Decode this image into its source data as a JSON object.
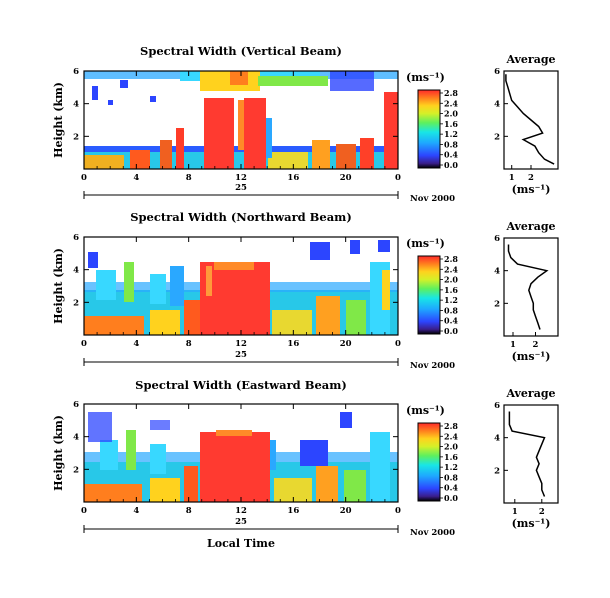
{
  "figure": {
    "x_label": "Local Time",
    "date_day": "25",
    "date_text": "Nov 2000",
    "y_label": "Height (km)",
    "unit_label": "(ms⁻¹)",
    "average_title": "Average",
    "average_xlabel": "(ms⁻¹)"
  },
  "chart_data": [
    {
      "type": "heatmap",
      "title": "Spectral Width (Vertical Beam)",
      "xlim": [
        0,
        24
      ],
      "xticks": [
        "0",
        "4",
        "8",
        "12",
        "16",
        "20",
        "0"
      ],
      "ylim": [
        0,
        6
      ],
      "yticks": [
        "2",
        "4",
        "6"
      ],
      "colorbar": {
        "range": [
          0,
          2.8
        ],
        "ticks": [
          "2.8",
          "2.4",
          "2.0",
          "1.6",
          "1.2",
          "0.8",
          "0.4",
          "0.0"
        ]
      },
      "data_note": "",
      "average_profile": {
        "xlim": [
          0.6,
          3.4
        ],
        "xticks": [
          "1",
          "2"
        ],
        "yticks": [
          "2",
          "4",
          "6"
        ],
        "height_km": [
          0.3,
          0.6,
          1.0,
          1.4,
          1.8,
          2.2,
          2.6,
          3.0,
          3.4,
          3.8,
          4.2,
          4.6,
          5.0,
          5.4,
          5.8
        ],
        "width_ms": [
          3.2,
          2.7,
          2.4,
          2.2,
          1.6,
          2.6,
          2.4,
          2.0,
          1.6,
          1.3,
          1.0,
          0.9,
          0.8,
          0.7,
          0.7
        ]
      }
    },
    {
      "type": "heatmap",
      "title": "Spectral Width (Northward Beam)",
      "xlim": [
        0,
        24
      ],
      "xticks": [
        "0",
        "4",
        "8",
        "12",
        "16",
        "20",
        "0"
      ],
      "ylim": [
        0,
        6
      ],
      "yticks": [
        "2",
        "4",
        "6"
      ],
      "colorbar": {
        "range": [
          0,
          2.8
        ],
        "ticks": [
          "2.8",
          "2.4",
          "2.0",
          "1.6",
          "1.2",
          "0.8",
          "0.4",
          "0.0"
        ]
      },
      "average_profile": {
        "xlim": [
          0.6,
          3.0
        ],
        "xticks": [
          "1",
          "2"
        ],
        "yticks": [
          "2",
          "4",
          "6"
        ],
        "height_km": [
          0.4,
          0.8,
          1.2,
          1.6,
          2.0,
          2.4,
          2.8,
          3.2,
          3.6,
          4.0,
          4.4,
          4.8,
          5.2,
          5.6
        ],
        "width_ms": [
          2.2,
          2.1,
          2.0,
          1.9,
          1.9,
          1.8,
          1.7,
          1.8,
          2.1,
          2.5,
          1.2,
          0.9,
          0.8,
          0.8
        ]
      }
    },
    {
      "type": "heatmap",
      "title": "Spectral Width (Eastward Beam)",
      "xlim": [
        0,
        24
      ],
      "xticks": [
        "0",
        "4",
        "8",
        "12",
        "16",
        "20",
        "0"
      ],
      "ylim": [
        0,
        6
      ],
      "yticks": [
        "2",
        "4",
        "6"
      ],
      "colorbar": {
        "range": [
          0,
          2.8
        ],
        "ticks": [
          "2.8",
          "2.4",
          "2.0",
          "1.6",
          "1.2",
          "0.8",
          "0.4",
          "0.0"
        ]
      },
      "average_profile": {
        "xlim": [
          0.6,
          2.6
        ],
        "xticks": [
          "1",
          "2"
        ],
        "yticks": [
          "2",
          "4",
          "6"
        ],
        "height_km": [
          0.4,
          0.8,
          1.2,
          1.6,
          2.0,
          2.4,
          2.8,
          3.2,
          3.6,
          4.0,
          4.4,
          4.8,
          5.2,
          5.6
        ],
        "width_ms": [
          2.1,
          2.0,
          2.0,
          1.9,
          1.8,
          1.9,
          1.8,
          1.9,
          2.0,
          2.1,
          0.9,
          0.8,
          0.8,
          0.8
        ]
      }
    }
  ]
}
